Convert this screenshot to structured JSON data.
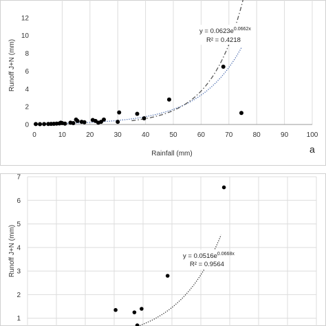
{
  "chart_data": [
    {
      "type": "scatter",
      "panel_label": "a",
      "xlabel": "Rainfall (mm)",
      "ylabel": "Runoff J+N (mm)",
      "xlim": [
        0,
        100
      ],
      "ylim": [
        0,
        14
      ],
      "x_ticks": [
        0,
        10,
        20,
        30,
        40,
        50,
        60,
        70,
        80,
        90,
        100
      ],
      "y_ticks": [
        0,
        2,
        4,
        6,
        8,
        10,
        12
      ],
      "grid": "vertical",
      "series": [
        {
          "marker": "dot",
          "color": "#000000",
          "points": [
            [
              0.5,
              0.05
            ],
            [
              2,
              0.04
            ],
            [
              3.5,
              0.05
            ],
            [
              5,
              0.06
            ],
            [
              6,
              0.07
            ],
            [
              7,
              0.08
            ],
            [
              8,
              0.1
            ],
            [
              9,
              0.12
            ],
            [
              9.5,
              0.2
            ],
            [
              10,
              0.15
            ],
            [
              11,
              0.1
            ],
            [
              13,
              0.2
            ],
            [
              14,
              0.15
            ],
            [
              15,
              0.55
            ],
            [
              15.5,
              0.4
            ],
            [
              17,
              0.3
            ],
            [
              18,
              0.25
            ],
            [
              21,
              0.5
            ],
            [
              22,
              0.4
            ],
            [
              23,
              0.2
            ],
            [
              24,
              0.3
            ],
            [
              25,
              0.55
            ],
            [
              30,
              0.3
            ],
            [
              30.5,
              1.35
            ],
            [
              37,
              1.2
            ],
            [
              39.5,
              0.7
            ],
            [
              48.5,
              2.8
            ],
            [
              68,
              6.5
            ],
            [
              74.5,
              1.3
            ]
          ]
        }
      ],
      "fits": [
        {
          "model": "exponential",
          "a": 0.0623,
          "b": 0.0662,
          "x_range": [
            0,
            74.5
          ],
          "style": "dotted",
          "color": "#3b5fa8",
          "equation_text": "y = 0.0623e",
          "equation_exp": "0.0662x",
          "r2_text": "R² = 0.4218"
        },
        {
          "model": "exponential",
          "a": 0.0201,
          "b": 0.0872,
          "x_range": [
            35,
            100
          ],
          "style": "dashdot",
          "color": "#555555"
        }
      ]
    },
    {
      "type": "scatter",
      "ylabel": "Runoff J+N (mm)",
      "xlim": [
        0,
        100
      ],
      "ylim": [
        0,
        7
      ],
      "y_ticks": [
        1,
        2,
        3,
        4,
        5,
        6,
        7
      ],
      "grid": "both",
      "series": [
        {
          "marker": "dot",
          "color": "#000000",
          "points": [
            [
              30.5,
              1.35
            ],
            [
              37,
              1.25
            ],
            [
              38,
              0.7
            ],
            [
              39.5,
              1.4
            ],
            [
              48.5,
              2.8
            ],
            [
              68,
              6.55
            ]
          ]
        }
      ],
      "fits": [
        {
          "model": "exponential",
          "a": 0.0516,
          "b": 0.0668,
          "x_range": [
            36,
            67
          ],
          "style": "dotted",
          "color": "#222222",
          "equation_text": "y = 0.0516e",
          "equation_exp": "0.0668x",
          "r2_text": "R² = 0.9564"
        }
      ]
    }
  ]
}
